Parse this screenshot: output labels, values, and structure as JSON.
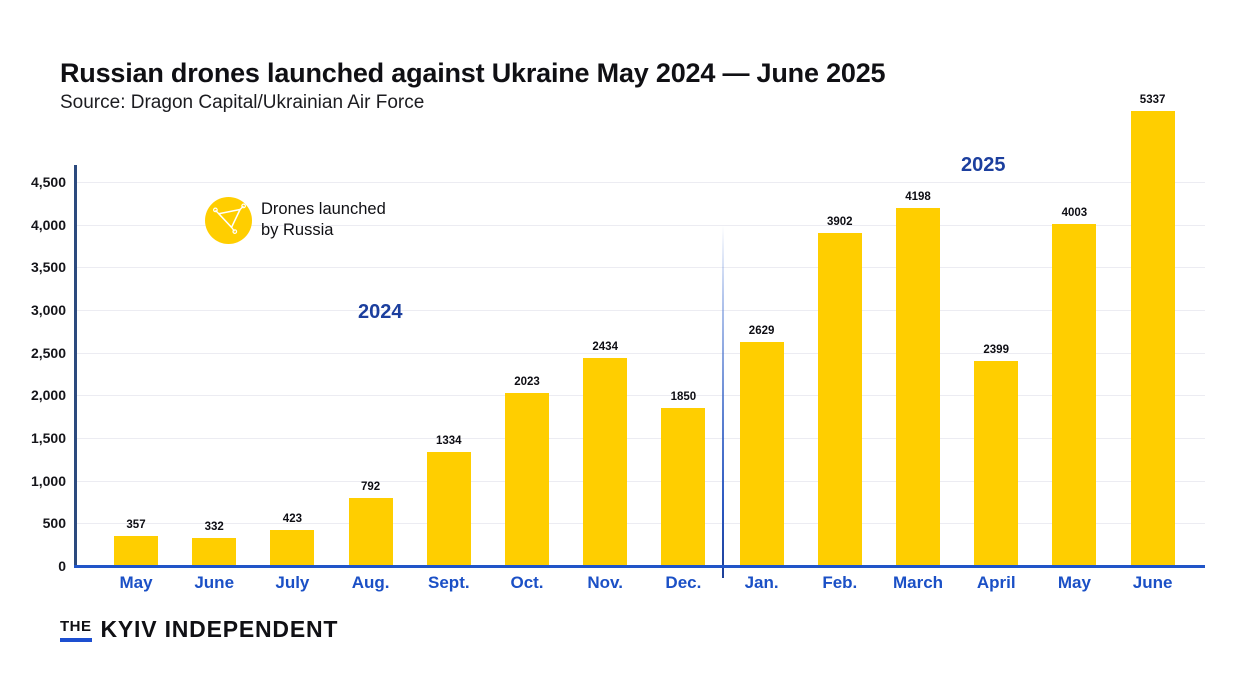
{
  "header": {
    "title": "Russian drones launched against Ukraine May 2024 — June 2025",
    "source": "Source: Dragon Capital/Ukrainian Air Force"
  },
  "legend": {
    "icon": "drone-icon",
    "line1": "Drones launched",
    "line2": "by Russia"
  },
  "chart_data": {
    "type": "bar",
    "title": "Russian drones launched against Ukraine May 2024 — June 2025",
    "categories": [
      "May",
      "June",
      "July",
      "Aug.",
      "Sept.",
      "Oct.",
      "Nov.",
      "Dec.",
      "Jan.",
      "Feb.",
      "March",
      "April",
      "May",
      "June"
    ],
    "values": [
      357,
      332,
      423,
      792,
      1334,
      2023,
      2434,
      1850,
      2629,
      3902,
      4198,
      2399,
      4003,
      5337
    ],
    "value_labels": [
      "357",
      "332",
      "423",
      "792",
      "1334",
      "2023",
      "2434",
      "1850",
      "2629",
      "3902",
      "4198",
      "2399",
      "4003",
      "5337"
    ],
    "year_labels": {
      "left": "2024",
      "right": "2025"
    },
    "divider_after_category_index": 7,
    "ylim": [
      0,
      4500
    ],
    "ytick_values": [
      0,
      500,
      1000,
      1500,
      2000,
      2500,
      3000,
      3500,
      4000,
      4500
    ],
    "ytick_labels": [
      "0",
      "500",
      "1,000",
      "1,500",
      "2,000",
      "2,500",
      "3,000",
      "3,500",
      "4,000",
      "4,500"
    ],
    "grid": true,
    "legend_entry": "Drones launched by Russia",
    "bar_color": "#FFCE00",
    "axis_color_x": "#2155c8",
    "axis_color_y": "#2c4a7e",
    "month_label_color": "#1b50c6",
    "year_label_color": "#1c3f9e"
  },
  "footer": {
    "brand_the": "THE",
    "brand_name": "KYIV INDEPENDENT"
  }
}
